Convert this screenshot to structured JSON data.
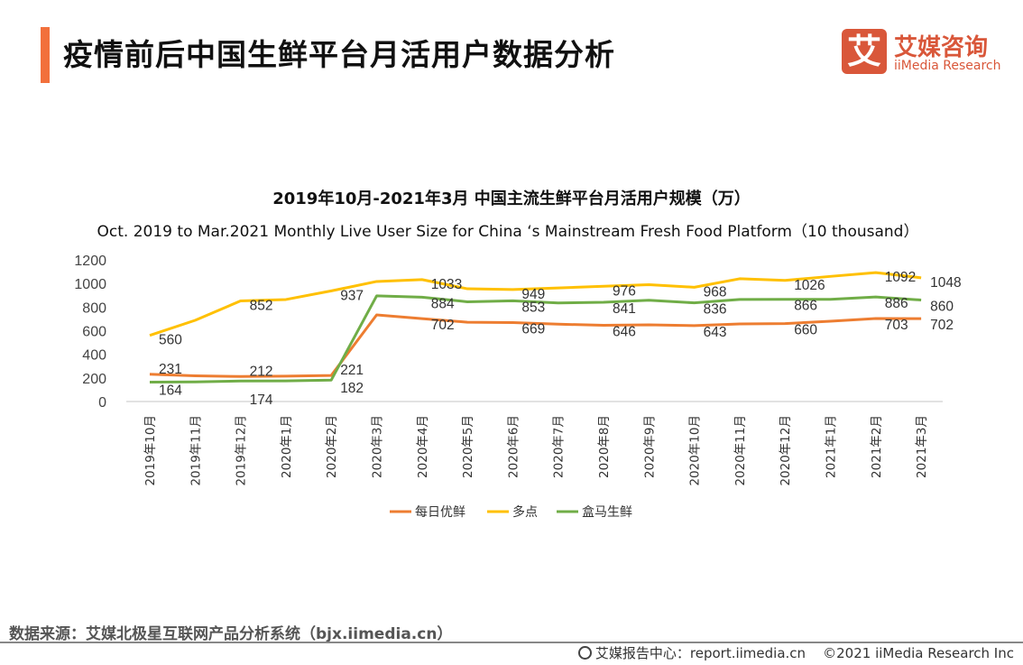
{
  "header": {
    "title": "疫情前后中国生鲜平台月活用户数据分析"
  },
  "logo": {
    "mark": "艾",
    "cn": "艾媒咨询",
    "en": "iiMedia Research"
  },
  "chart_data": {
    "type": "line",
    "title": "2019年10月-2021年3月 中国主流生鲜平台月活用户规模（万）",
    "subtitle": "Oct. 2019  to Mar.2021 Monthly Live User Size for China ‘s Mainstream Fresh Food Platform（10 thousand）",
    "categories": [
      "2019年10月",
      "2019年11月",
      "2019年12月",
      "2020年1月",
      "2020年2月",
      "2020年3月",
      "2020年4月",
      "2020年5月",
      "2020年6月",
      "2020年7月",
      "2020年8月",
      "2020年9月",
      "2020年10月",
      "2020年11月",
      "2020年12月",
      "2021年1月",
      "2021年2月",
      "2021年3月"
    ],
    "ylim": [
      0,
      1200
    ],
    "yticks": [
      0,
      200,
      400,
      600,
      800,
      1000,
      1200
    ],
    "grid": false,
    "legend": "bottom",
    "series": [
      {
        "name": "每日优鲜",
        "color": "#ed7d31",
        "values": [
          231,
          218,
          212,
          215,
          221,
          734,
          702,
          672,
          669,
          655,
          646,
          650,
          643,
          657,
          660,
          680,
          703,
          702
        ],
        "labeled": [
          0,
          2,
          4,
          6,
          8,
          10,
          12,
          14,
          16,
          17
        ]
      },
      {
        "name": "多点",
        "color": "#ffc000",
        "values": [
          560,
          688,
          852,
          864,
          937,
          1017,
          1033,
          955,
          949,
          962,
          976,
          990,
          968,
          1040,
          1026,
          1060,
          1092,
          1048
        ],
        "labeled": [
          0,
          2,
          4,
          6,
          8,
          10,
          12,
          14,
          16,
          17
        ]
      },
      {
        "name": "盒马生鲜",
        "color": "#70ad47",
        "values": [
          164,
          166,
          174,
          175,
          182,
          895,
          884,
          845,
          853,
          835,
          841,
          858,
          836,
          865,
          866,
          866,
          886,
          860
        ],
        "labeled": [
          0,
          2,
          4,
          6,
          8,
          10,
          12,
          14,
          16,
          17
        ]
      }
    ]
  },
  "source": "数据来源：艾媒北极星互联网产品分析系统（bjx.iimedia.cn）",
  "footer": {
    "report_center": "艾媒报告中心：report.iimedia.cn",
    "copyright": "©2021  iiMedia Research  Inc"
  }
}
